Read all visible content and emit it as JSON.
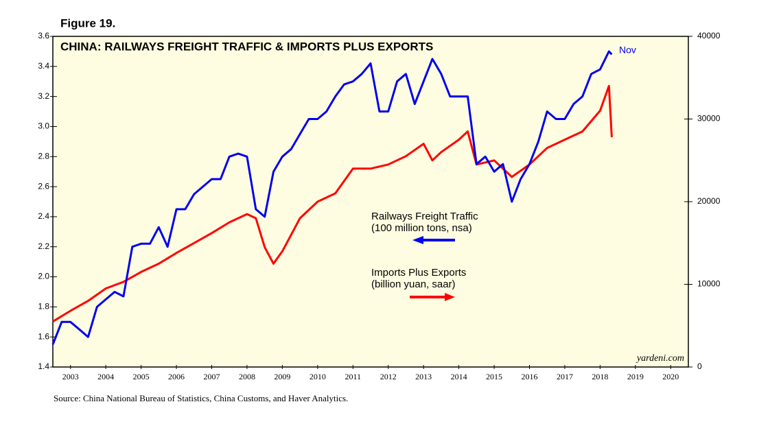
{
  "chart_data": {
    "type": "line",
    "figure_label": "Figure 19.",
    "title": "CHINA: RAILWAYS FREIGHT TRAFFIC & IMPORTS PLUS EXPORTS",
    "end_label": "Nov",
    "watermark": "yardeni.com",
    "source": "Source: China National Bureau of Statistics, China Customs, and Haver Analytics.",
    "xlim": [
      2003,
      2021
    ],
    "xticks": [
      {
        "value": 2003.5,
        "label": "2003"
      },
      {
        "value": 2004.5,
        "label": "2004"
      },
      {
        "value": 2005.5,
        "label": "2005"
      },
      {
        "value": 2006.5,
        "label": "2006"
      },
      {
        "value": 2007.5,
        "label": "2007"
      },
      {
        "value": 2008.5,
        "label": "2008"
      },
      {
        "value": 2009.5,
        "label": "2009"
      },
      {
        "value": 2010.5,
        "label": "2010"
      },
      {
        "value": 2011.5,
        "label": "2011"
      },
      {
        "value": 2012.5,
        "label": "2012"
      },
      {
        "value": 2013.5,
        "label": "2013"
      },
      {
        "value": 2014.5,
        "label": "2014"
      },
      {
        "value": 2015.5,
        "label": "2015"
      },
      {
        "value": 2016.5,
        "label": "2016"
      },
      {
        "value": 2017.5,
        "label": "2017"
      },
      {
        "value": 2018.5,
        "label": "2018"
      },
      {
        "value": 2019.5,
        "label": "2019"
      },
      {
        "value": 2020.5,
        "label": "2020"
      }
    ],
    "ylim": [
      1.4,
      3.6
    ],
    "yticks": [
      {
        "value": 1.4,
        "label": "1.4"
      },
      {
        "value": 1.6,
        "label": "1.6"
      },
      {
        "value": 1.8,
        "label": "1.8"
      },
      {
        "value": 2.0,
        "label": "2.0"
      },
      {
        "value": 2.2,
        "label": "2.2"
      },
      {
        "value": 2.4,
        "label": "2.4"
      },
      {
        "value": 2.6,
        "label": "2.6"
      },
      {
        "value": 2.8,
        "label": "2.8"
      },
      {
        "value": 3.0,
        "label": "3.0"
      },
      {
        "value": 3.2,
        "label": "3.2"
      },
      {
        "value": 3.4,
        "label": "3.4"
      },
      {
        "value": 3.6,
        "label": "3.6"
      }
    ],
    "y2lim": [
      0,
      40000
    ],
    "y2ticks": [
      0,
      10000,
      20000,
      30000,
      40000
    ],
    "series": [
      {
        "name": "Railways Freight Traffic",
        "note": "(100 million tons, nsa)",
        "color": "#0000ee",
        "axis": "y",
        "x": [
          2003.0,
          2003.25,
          2003.5,
          2003.75,
          2004.0,
          2004.25,
          2004.5,
          2004.75,
          2005.0,
          2005.25,
          2005.5,
          2005.75,
          2006.0,
          2006.25,
          2006.5,
          2006.75,
          2007.0,
          2007.25,
          2007.5,
          2007.75,
          2008.0,
          2008.25,
          2008.5,
          2008.75,
          2009.0,
          2009.25,
          2009.5,
          2009.75,
          2010.0,
          2010.25,
          2010.5,
          2010.75,
          2011.0,
          2011.25,
          2011.5,
          2011.75,
          2012.0,
          2012.25,
          2012.5,
          2012.75,
          2013.0,
          2013.25,
          2013.5,
          2013.75,
          2014.0,
          2014.25,
          2014.5,
          2014.75,
          2015.0,
          2015.25,
          2015.5,
          2015.75,
          2016.0,
          2016.25,
          2016.5,
          2016.75,
          2017.0,
          2017.25,
          2017.5,
          2017.75,
          2018.0,
          2018.25,
          2018.5,
          2018.75,
          2018.83
        ],
        "values": [
          1.55,
          1.7,
          1.7,
          1.65,
          1.6,
          1.8,
          1.85,
          1.9,
          1.87,
          2.2,
          2.22,
          2.22,
          2.33,
          2.2,
          2.45,
          2.45,
          2.55,
          2.6,
          2.65,
          2.65,
          2.8,
          2.82,
          2.8,
          2.45,
          2.4,
          2.7,
          2.8,
          2.85,
          2.95,
          3.05,
          3.05,
          3.1,
          3.2,
          3.28,
          3.3,
          3.35,
          3.42,
          3.1,
          3.1,
          3.3,
          3.35,
          3.15,
          3.3,
          3.45,
          3.35,
          3.2,
          3.2,
          3.2,
          2.75,
          2.8,
          2.7,
          2.75,
          2.5,
          2.65,
          2.75,
          2.9,
          3.1,
          3.05,
          3.05,
          3.15,
          3.2,
          3.35,
          3.38,
          3.5,
          3.48
        ]
      },
      {
        "name": "Imports Plus Exports",
        "note": "(billion yuan, saar)",
        "color": "#ff0000",
        "axis": "y2",
        "x": [
          2003.0,
          2003.5,
          2004.0,
          2004.5,
          2005.0,
          2005.5,
          2006.0,
          2006.5,
          2007.0,
          2007.5,
          2008.0,
          2008.5,
          2008.75,
          2009.0,
          2009.25,
          2009.5,
          2009.75,
          2010.0,
          2010.5,
          2011.0,
          2011.5,
          2012.0,
          2012.5,
          2013.0,
          2013.5,
          2013.75,
          2014.0,
          2014.5,
          2014.75,
          2015.0,
          2015.5,
          2016.0,
          2016.5,
          2017.0,
          2017.5,
          2018.0,
          2018.5,
          2018.75,
          2018.83
        ],
        "values": [
          5500,
          6800,
          8000,
          9500,
          10300,
          11500,
          12500,
          13800,
          15000,
          16200,
          17500,
          18500,
          18000,
          14500,
          12500,
          14000,
          16000,
          18000,
          20000,
          21000,
          24000,
          24000,
          24500,
          25500,
          27000,
          25000,
          26000,
          27500,
          28500,
          24500,
          25000,
          23000,
          24500,
          26500,
          27500,
          28500,
          31000,
          34000,
          27800
        ]
      }
    ]
  }
}
